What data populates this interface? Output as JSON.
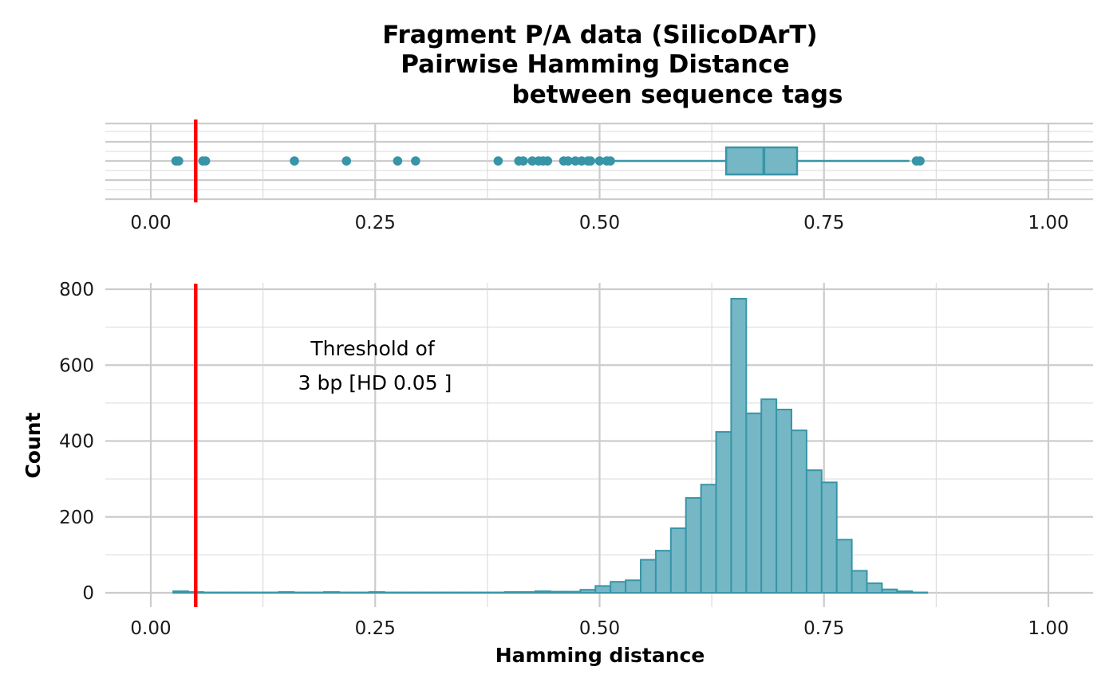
{
  "chart_data": [
    {
      "type": "boxplot",
      "title_lines": [
        "Fragment P/A data (SilicoDArT)",
        "Pairwise Hamming Distance",
        "between sequence tags"
      ],
      "xlim": [
        0,
        1
      ],
      "x_ticks": [
        0,
        0.25,
        0.5,
        0.75,
        1
      ],
      "x_tick_labels": [
        "0.00",
        "0.25",
        "0.50",
        "0.75",
        "1.00"
      ],
      "box": {
        "whisker_low": 0.515,
        "q1": 0.641,
        "median": 0.683,
        "q3": 0.72,
        "whisker_high": 0.845
      },
      "outliers": [
        0.028,
        0.031,
        0.058,
        0.061,
        0.16,
        0.218,
        0.275,
        0.295,
        0.387,
        0.41,
        0.415,
        0.425,
        0.432,
        0.437,
        0.442,
        0.46,
        0.465,
        0.473,
        0.48,
        0.487,
        0.49,
        0.5,
        0.508,
        0.512,
        0.853,
        0.857
      ],
      "threshold": 0.05,
      "colors": {
        "fill": "#75b7c5",
        "stroke": "#3895a8",
        "threshold": "#ff0000"
      }
    },
    {
      "type": "histogram",
      "xlabel": "Hamming distance",
      "ylabel": "Count",
      "xlim": [
        0,
        1
      ],
      "ylim": [
        0,
        800
      ],
      "x_ticks": [
        0,
        0.25,
        0.5,
        0.75,
        1
      ],
      "x_tick_labels": [
        "0.00",
        "0.25",
        "0.50",
        "0.75",
        "1.00"
      ],
      "y_ticks": [
        0,
        200,
        400,
        600,
        800
      ],
      "y_tick_labels": [
        "0",
        "200",
        "400",
        "600",
        "800"
      ],
      "bin_start": 0.025,
      "bin_width": 0.0168,
      "counts": [
        4,
        2,
        1,
        1,
        1,
        1,
        1,
        2,
        1,
        1,
        2,
        1,
        1,
        2,
        1,
        1,
        1,
        1,
        1,
        1,
        1,
        1,
        2,
        2,
        4,
        3,
        3,
        8,
        18,
        29,
        33,
        87,
        111,
        170,
        250,
        285,
        424,
        775,
        473,
        510,
        483,
        428,
        323,
        291,
        140,
        58,
        25,
        9,
        4,
        1
      ],
      "threshold": 0.05,
      "annotation": [
        "Threshold of",
        "3 bp [HD 0.05 ]"
      ],
      "colors": {
        "fill": "#75b7c5",
        "stroke": "#3895a8",
        "threshold": "#ff0000"
      }
    }
  ]
}
